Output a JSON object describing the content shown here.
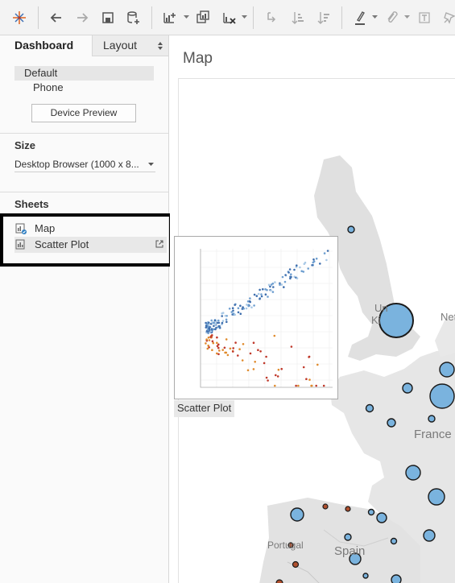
{
  "toolbar": {
    "icons": [
      "tableau-logo-icon",
      "undo-icon",
      "redo-icon",
      "save-icon",
      "new-data-source-icon",
      "new-worksheet-icon",
      "duplicate-icon",
      "clear-icon",
      "swap-icon",
      "sort-ascending-icon",
      "sort-descending-icon",
      "highlight-icon",
      "annotate-icon",
      "text-icon",
      "pin-icon"
    ]
  },
  "sidebar": {
    "tabs": {
      "dashboard": "Dashboard",
      "layout": "Layout"
    },
    "devices": {
      "default": "Default",
      "phone": "Phone"
    },
    "device_preview_label": "Device Preview",
    "size": {
      "title": "Size",
      "value": "Desktop Browser (1000 x 8..."
    },
    "sheets": {
      "title": "Sheets",
      "items": [
        {
          "label": "Map"
        },
        {
          "label": "Scatter Plot"
        }
      ]
    }
  },
  "canvas": {
    "title": "Map",
    "scatter_caption": "Scatter Plot",
    "map_labels": {
      "uk_line1": "Un",
      "uk_line2": "Ki",
      "netherlands": "Net",
      "france": "France",
      "portugal": "Portugal",
      "spain": "Spain"
    }
  },
  "colors": {
    "accent_blue": "#7ab3de",
    "scatter_blue": "#3f6fae",
    "scatter_orange": "#e08b2d",
    "scatter_red": "#c0392b"
  }
}
